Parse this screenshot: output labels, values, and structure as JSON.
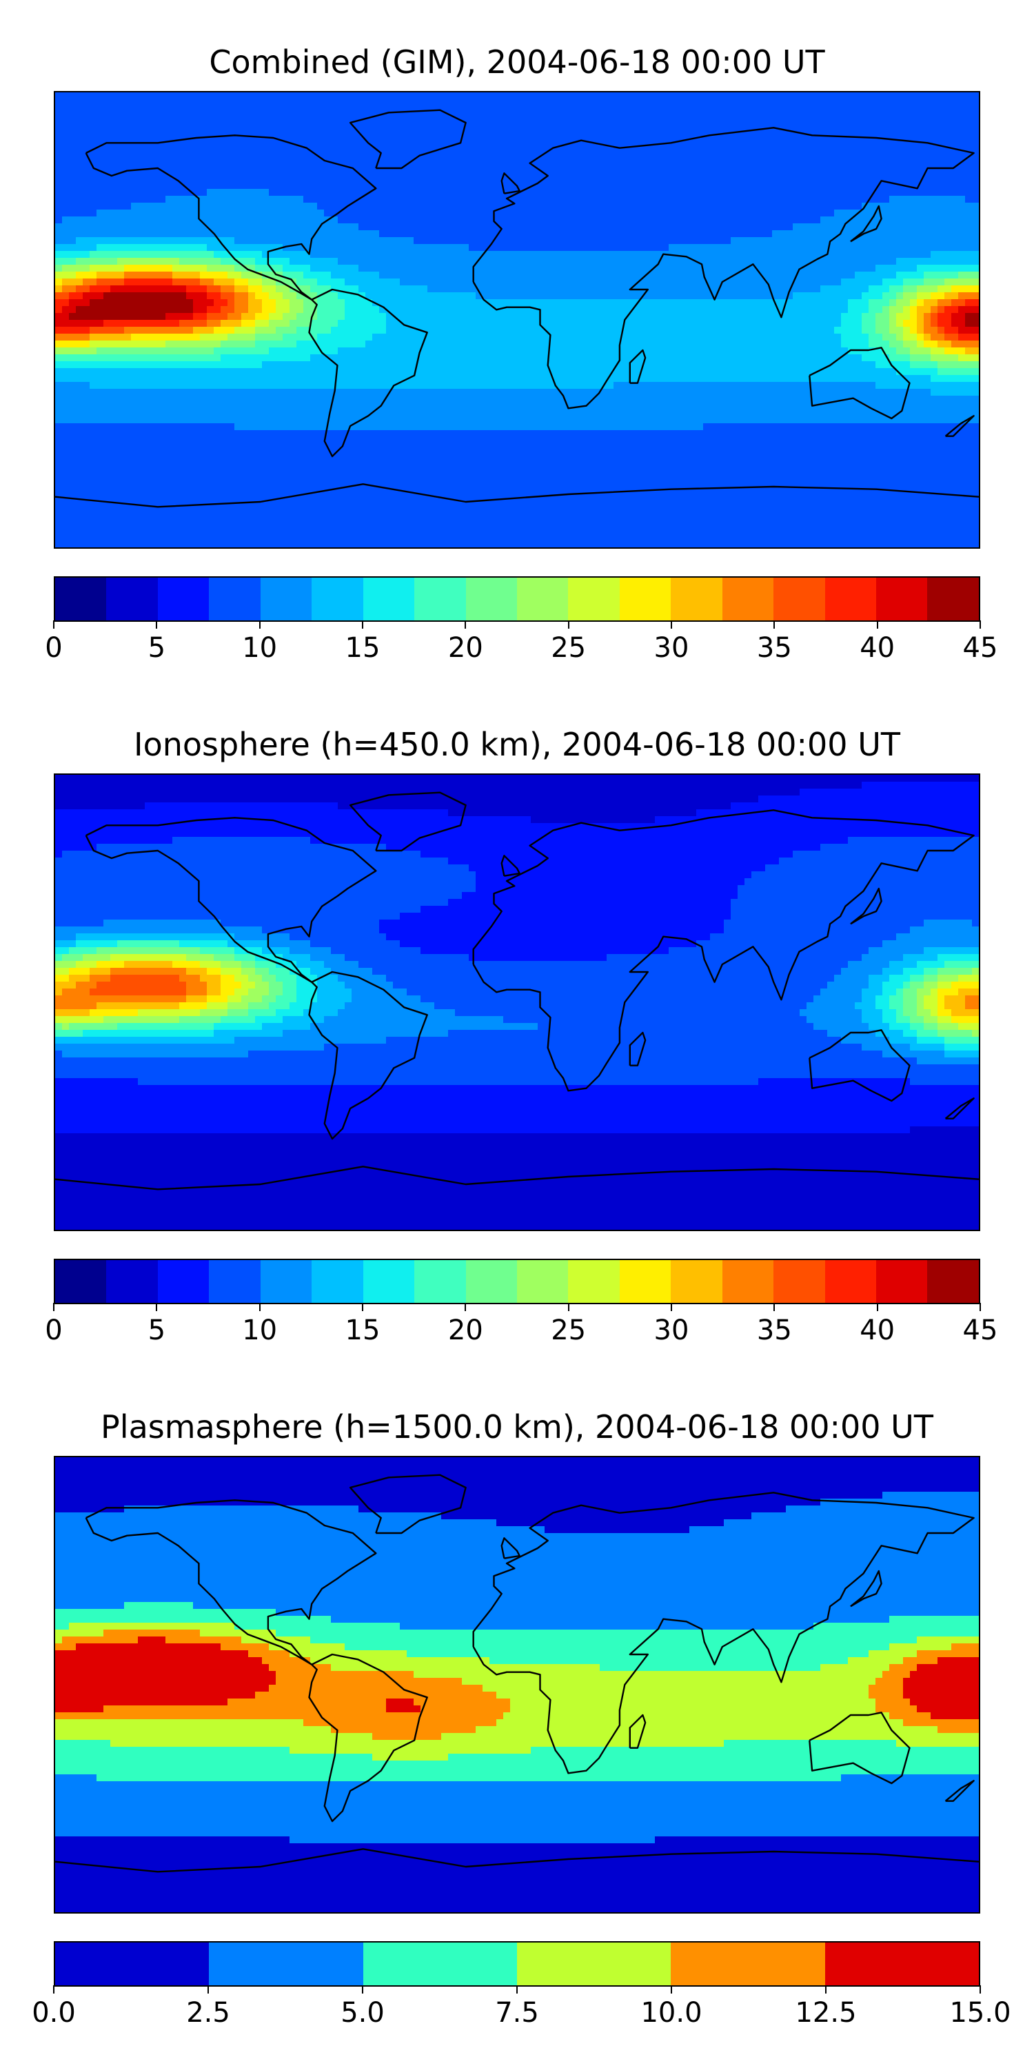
{
  "maps": [
    {
      "title": "Combined (GIM), 2004-06-18 00:00 UT",
      "colorbar": {
        "ticks": [
          "0",
          "5",
          "10",
          "15",
          "20",
          "25",
          "30",
          "35",
          "40",
          "45"
        ],
        "colors": [
          "#00008f",
          "#0000cf",
          "#0010ff",
          "#0050ff",
          "#0090ff",
          "#00c0ff",
          "#10efef",
          "#40ffbf",
          "#70ff8f",
          "#a0ff60",
          "#cfff30",
          "#ffef00",
          "#ffbf00",
          "#ff8000",
          "#ff5000",
          "#ff2000",
          "#df0000",
          "#9f0000"
        ],
        "range": [
          0,
          45
        ]
      },
      "field_levels": {
        "background": 8,
        "equatorial_band": 14,
        "northern_band": 11,
        "pacific_anomaly": 42,
        "west_pacific_anomaly": 39
      }
    },
    {
      "title": "Ionosphere  (h=450.0 km), 2004-06-18 00:00 UT",
      "colorbar": {
        "ticks": [
          "0",
          "5",
          "10",
          "15",
          "20",
          "25",
          "30",
          "35",
          "40",
          "45"
        ],
        "colors": [
          "#00008f",
          "#0000cf",
          "#0010ff",
          "#0050ff",
          "#0090ff",
          "#00c0ff",
          "#10efef",
          "#40ffbf",
          "#70ff8f",
          "#a0ff60",
          "#cfff30",
          "#ffef00",
          "#ffbf00",
          "#ff8000",
          "#ff5000",
          "#ff2000",
          "#df0000",
          "#9f0000"
        ],
        "range": [
          0,
          45
        ]
      },
      "field_levels": {
        "background": 4,
        "equatorial_band": 10,
        "northern_band": 13,
        "pacific_anomaly": 33,
        "west_pacific_anomaly": 28
      }
    },
    {
      "title": "Plasmasphere (h=1500.0 km), 2004-06-18 00:00 UT",
      "colorbar": {
        "ticks": [
          "0.0",
          "2.5",
          "5.0",
          "7.5",
          "10.0",
          "12.5",
          "15.0"
        ],
        "colors": [
          "#0000d0",
          "#0080ff",
          "#30ffc0",
          "#c0ff30",
          "#ff9000",
          "#e00000"
        ],
        "range": [
          0,
          15
        ]
      },
      "field_levels": {
        "background": 2,
        "equatorial_band": 9,
        "northern_band": 4,
        "pacific_anomaly": 13,
        "west_pacific_anomaly": 13
      }
    }
  ]
}
